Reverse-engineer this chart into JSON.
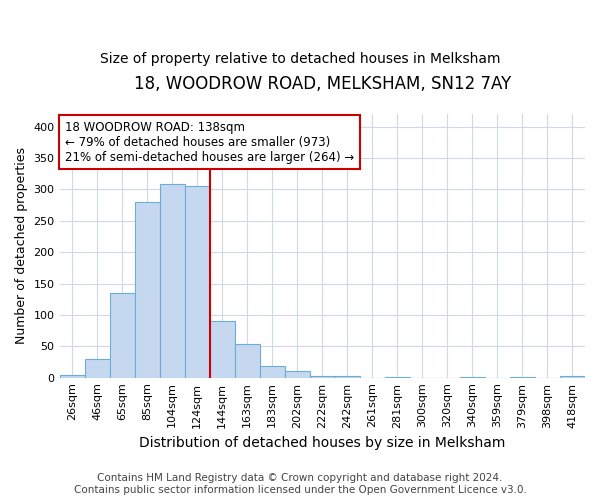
{
  "title": "18, WOODROW ROAD, MELKSHAM, SN12 7AY",
  "subtitle": "Size of property relative to detached houses in Melksham",
  "xlabel": "Distribution of detached houses by size in Melksham",
  "ylabel": "Number of detached properties",
  "footer_line1": "Contains HM Land Registry data © Crown copyright and database right 2024.",
  "footer_line2": "Contains public sector information licensed under the Open Government Licence v3.0.",
  "bar_labels": [
    "26sqm",
    "46sqm",
    "65sqm",
    "85sqm",
    "104sqm",
    "124sqm",
    "144sqm",
    "163sqm",
    "183sqm",
    "202sqm",
    "222sqm",
    "242sqm",
    "261sqm",
    "281sqm",
    "300sqm",
    "320sqm",
    "340sqm",
    "359sqm",
    "379sqm",
    "398sqm",
    "418sqm"
  ],
  "bar_values": [
    5,
    30,
    135,
    280,
    308,
    305,
    90,
    53,
    18,
    10,
    3,
    2,
    0,
    1,
    0,
    0,
    1,
    0,
    1,
    0,
    2
  ],
  "bar_color": "#c5d8f0",
  "bar_edge_color": "#6aaed6",
  "grid_color": "#d0d8e8",
  "property_line_label": "18 WOODROW ROAD: 138sqm",
  "annotation_line1": "← 79% of detached houses are smaller (973)",
  "annotation_line2": "21% of semi-detached houses are larger (264) →",
  "annotation_box_color": "#ffffff",
  "annotation_box_edge_color": "#cc0000",
  "vline_color": "#cc0000",
  "vline_x_index": 5.5,
  "ylim": [
    0,
    420
  ],
  "yticks": [
    0,
    50,
    100,
    150,
    200,
    250,
    300,
    350,
    400
  ],
  "title_fontsize": 12,
  "subtitle_fontsize": 10,
  "xlabel_fontsize": 10,
  "ylabel_fontsize": 9,
  "tick_fontsize": 8,
  "annotation_fontsize": 8.5,
  "footer_fontsize": 7.5
}
